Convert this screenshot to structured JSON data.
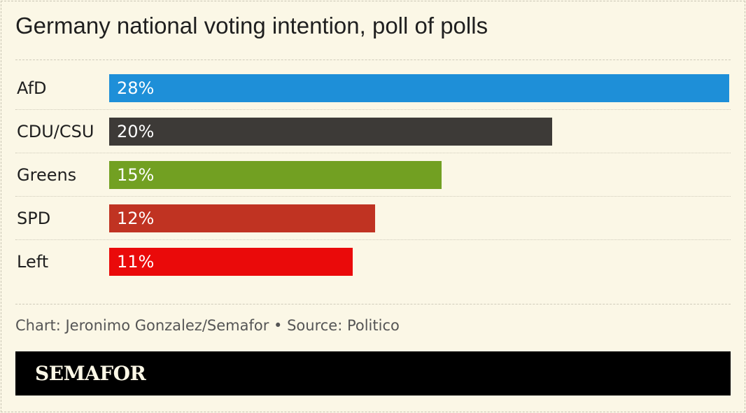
{
  "title": "Germany national voting intention, poll of polls",
  "credit": "Chart: Jeronimo Gonzalez/Semafor • Source: Politico",
  "brand": "SEMAFOR",
  "chart_data": {
    "type": "bar",
    "orientation": "horizontal",
    "title": "Germany national voting intention, poll of polls",
    "categories": [
      "AfD",
      "CDU/CSU",
      "Greens",
      "SPD",
      "Left"
    ],
    "values": [
      28,
      20,
      15,
      12,
      11
    ],
    "value_labels": [
      "28%",
      "20%",
      "15%",
      "12%",
      "11%"
    ],
    "colors": [
      "#1e8fd8",
      "#3d3a37",
      "#72a022",
      "#c03322",
      "#ea0a0a"
    ],
    "xlim": [
      0,
      28
    ],
    "grid": false,
    "legend": "none"
  }
}
